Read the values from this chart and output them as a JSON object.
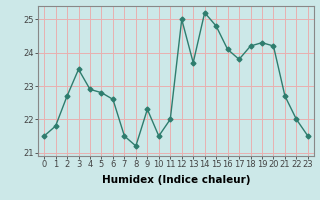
{
  "x": [
    0,
    1,
    2,
    3,
    4,
    5,
    6,
    7,
    8,
    9,
    10,
    11,
    12,
    13,
    14,
    15,
    16,
    17,
    18,
    19,
    20,
    21,
    22,
    23
  ],
  "y": [
    21.5,
    21.8,
    22.7,
    23.5,
    22.9,
    22.8,
    22.6,
    21.5,
    21.2,
    22.3,
    21.5,
    22.0,
    25.0,
    23.7,
    25.2,
    24.8,
    24.1,
    23.8,
    24.2,
    24.3,
    24.2,
    22.7,
    22.0,
    21.5
  ],
  "line_color": "#2e7d6e",
  "marker": "D",
  "marker_size": 2.5,
  "bg_color": "#cce8e8",
  "grid_color": "#e8b0b0",
  "xlabel": "Humidex (Indice chaleur)",
  "ylim": [
    20.9,
    25.4
  ],
  "xlim": [
    -0.5,
    23.5
  ],
  "yticks": [
    21,
    22,
    23,
    24,
    25
  ],
  "xticks": [
    0,
    1,
    2,
    3,
    4,
    5,
    6,
    7,
    8,
    9,
    10,
    11,
    12,
    13,
    14,
    15,
    16,
    17,
    18,
    19,
    20,
    21,
    22,
    23
  ],
  "tick_fontsize": 6,
  "xlabel_fontsize": 7.5,
  "spine_color": "#888888"
}
